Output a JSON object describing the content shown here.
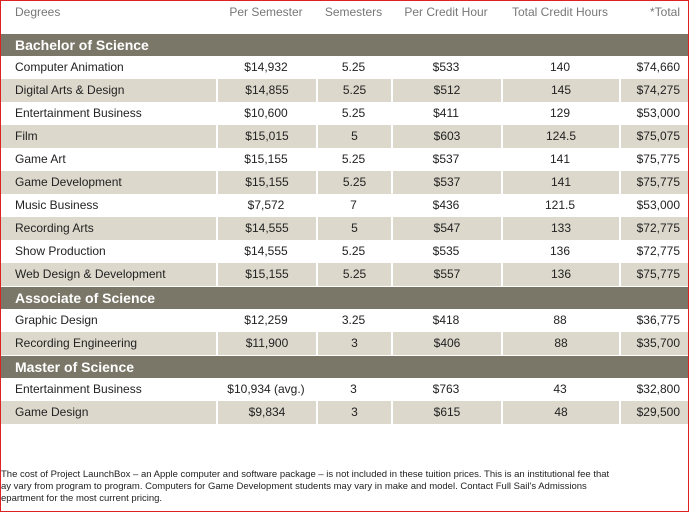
{
  "table": {
    "header": [
      "Degrees",
      "Per Semester",
      "Semesters",
      "Per Credit Hour",
      "Total Credit Hours",
      "*Total"
    ],
    "sections": [
      {
        "title": "Bachelor of Science",
        "rows": [
          [
            "Computer Animation",
            "$14,932",
            "5.25",
            "$533",
            "140",
            "$74,660"
          ],
          [
            "Digital Arts & Design",
            "$14,855",
            "5.25",
            "$512",
            "145",
            "$74,275"
          ],
          [
            "Entertainment Business",
            "$10,600",
            "5.25",
            "$411",
            "129",
            "$53,000"
          ],
          [
            "Film",
            "$15,015",
            "5",
            "$603",
            "124.5",
            "$75,075"
          ],
          [
            "Game Art",
            "$15,155",
            "5.25",
            "$537",
            "141",
            "$75,775"
          ],
          [
            "Game Development",
            "$15,155",
            "5.25",
            "$537",
            "141",
            "$75,775"
          ],
          [
            "Music Business",
            "$7,572",
            "7",
            "$436",
            "121.5",
            "$53,000"
          ],
          [
            "Recording Arts",
            "$14,555",
            "5",
            "$547",
            "133",
            "$72,775"
          ],
          [
            "Show Production",
            "$14,555",
            "5.25",
            "$535",
            "136",
            "$72,775"
          ],
          [
            "Web Design & Development",
            "$15,155",
            "5.25",
            "$557",
            "136",
            "$75,775"
          ]
        ]
      },
      {
        "title": "Associate of Science",
        "rows": [
          [
            "Graphic Design",
            "$12,259",
            "3.25",
            "$418",
            "88",
            "$36,775"
          ],
          [
            "Recording Engineering",
            "$11,900",
            "3",
            "$406",
            "88",
            "$35,700"
          ]
        ]
      },
      {
        "title": "Master of Science",
        "rows": [
          [
            "Entertainment Business",
            "$10,934 (avg.)",
            "3",
            "$763",
            "43",
            "$32,800"
          ],
          [
            "Game Design",
            "$9,834",
            "3",
            "$615",
            "48",
            "$29,500"
          ]
        ]
      }
    ]
  },
  "footnote": [
    "The cost of Project LaunchBox – an Apple computer and software package – is not included in these tuition prices. This is an institutional fee that",
    "ay vary from program to program. Computers for Game Development students may vary in make and model. Contact Full Sail's Admissions",
    "epartment for the most current pricing."
  ]
}
